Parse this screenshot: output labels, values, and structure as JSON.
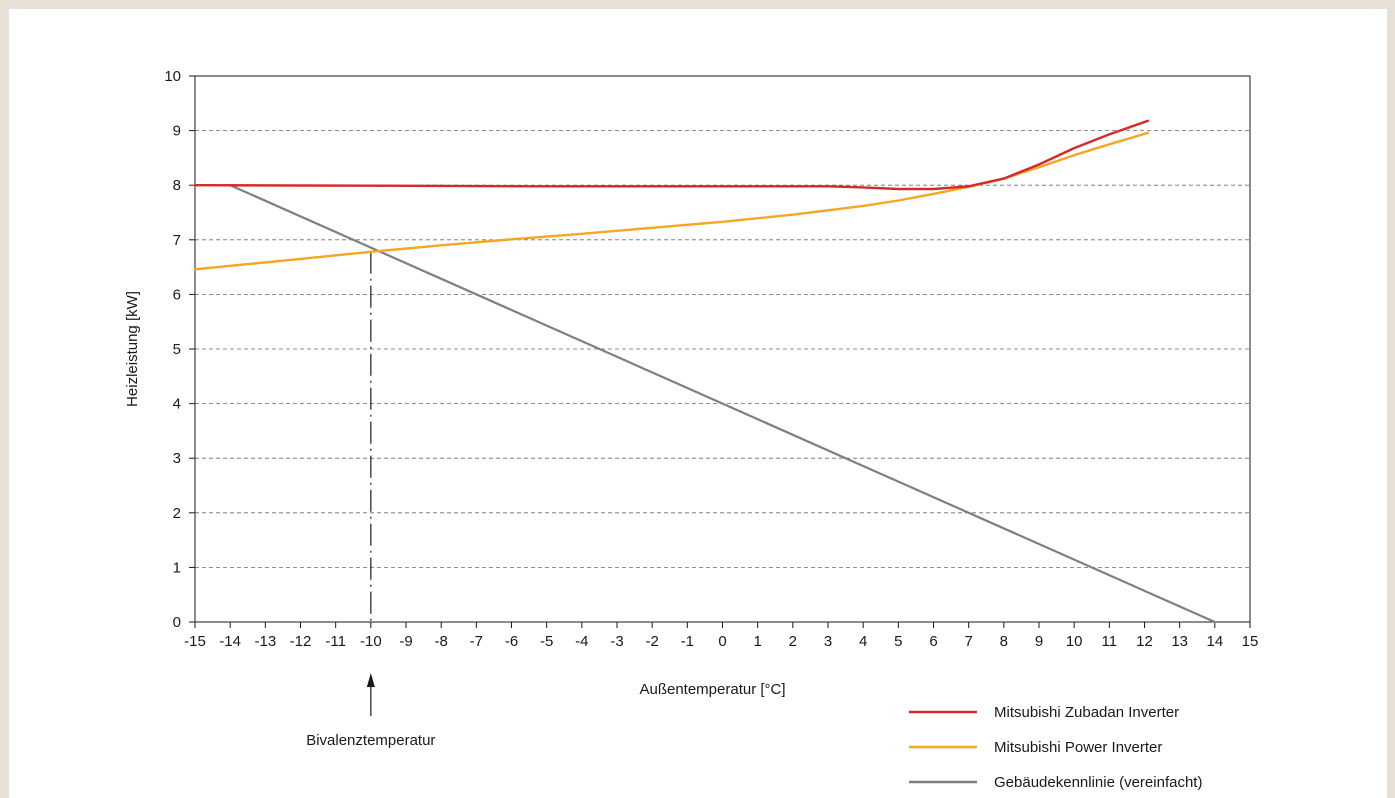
{
  "chart_data": {
    "type": "line",
    "xlabel": "Außentemperatur [°C]",
    "ylabel": "Heizleistung [kW]",
    "xlim": [
      -15,
      15
    ],
    "ylim": [
      0,
      10
    ],
    "x_ticks": [
      -15,
      -14,
      -13,
      -12,
      -11,
      -10,
      -9,
      -8,
      -7,
      -6,
      -5,
      -4,
      -3,
      -2,
      -1,
      0,
      1,
      2,
      3,
      4,
      5,
      6,
      7,
      8,
      9,
      10,
      11,
      12,
      13,
      14,
      15
    ],
    "y_ticks": [
      0,
      1,
      2,
      3,
      4,
      5,
      6,
      7,
      8,
      9,
      10
    ],
    "grid": "horizontal dashed",
    "legend_position": "bottom-right",
    "series": [
      {
        "name": "Mitsubishi Zubadan Inverter",
        "color": "#d42a2a",
        "x": [
          -15,
          -10,
          -5,
          0,
          3,
          4,
          5,
          6,
          7,
          8,
          9,
          10,
          11,
          12.1
        ],
        "y": [
          8.0,
          7.99,
          7.98,
          7.98,
          7.98,
          7.96,
          7.93,
          7.93,
          7.98,
          8.12,
          8.38,
          8.68,
          8.93,
          9.18
        ]
      },
      {
        "name": "Mitsubishi Power Inverter",
        "color": "#f5a623",
        "x": [
          -15,
          -12,
          -10,
          -8,
          -6,
          -4,
          -2,
          0,
          2,
          4,
          5,
          6,
          7,
          8,
          9,
          10,
          11,
          12.1
        ],
        "y": [
          6.46,
          6.65,
          6.78,
          6.9,
          7.01,
          7.11,
          7.22,
          7.33,
          7.46,
          7.62,
          7.72,
          7.84,
          7.97,
          8.12,
          8.33,
          8.55,
          8.75,
          8.96
        ]
      },
      {
        "name": "Gebäudekennlinie (vereinfacht)",
        "color": "#7f7f7f",
        "x": [
          -14,
          14
        ],
        "y": [
          8.0,
          0.0
        ]
      }
    ],
    "annotations": [
      {
        "text": "Bivalenztemperatur",
        "x": -10,
        "y": 6.78
      }
    ]
  }
}
